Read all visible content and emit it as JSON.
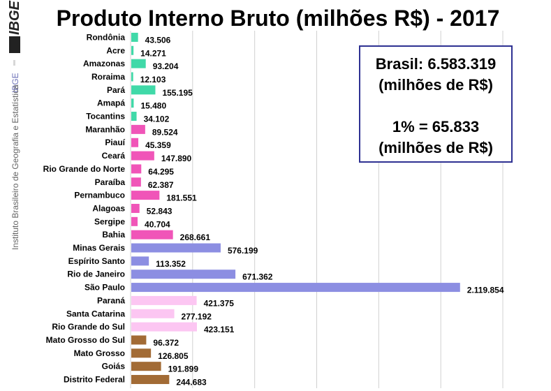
{
  "sidebar": {
    "logo_text": "IBGE",
    "brand_vertical": "IBGE",
    "institute_name": "Instituto Brasileiro de Geografia e Estatística"
  },
  "info_box": {
    "line1": "Brasil: 6.583.319",
    "line2": "(milhões de R$)",
    "line3": "1% = 65.833",
    "line4": "(milhões de R$)"
  },
  "colors": {
    "norte": "#40d9a8",
    "nordeste": "#f055b8",
    "sudeste": "#8c8ee2",
    "sul": "#fcc6f2",
    "centro_oeste": "#a26b35",
    "gridline": "#d0d0d0",
    "box_border": "#2e3192"
  },
  "chart_data": {
    "type": "bar",
    "orientation": "horizontal",
    "title": "Produto Interno Bruto (milhões R$) - 2017",
    "xlabel": "",
    "ylabel": "",
    "xlim": [
      0,
      2400000
    ],
    "grid": true,
    "categories": [
      "Rondônia",
      "Acre",
      "Amazonas",
      "Roraima",
      "Pará",
      "Amapá",
      "Tocantins",
      "Maranhão",
      "Piauí",
      "Ceará",
      "Rio Grande do Norte",
      "Paraíba",
      "Pernambuco",
      "Alagoas",
      "Sergipe",
      "Bahia",
      "Minas Gerais",
      "Espírito Santo",
      "Rio de Janeiro",
      "São Paulo",
      "Paraná",
      "Santa Catarina",
      "Rio Grande do Sul",
      "Mato Grosso do Sul",
      "Mato Grosso",
      "Goiás",
      "Distrito Federal"
    ],
    "values": [
      43506,
      14271,
      93204,
      12103,
      155195,
      15480,
      34102,
      89524,
      45359,
      147890,
      64295,
      62387,
      181551,
      52843,
      40704,
      268661,
      576199,
      113352,
      671362,
      2119854,
      421375,
      277192,
      423151,
      96372,
      126805,
      191899,
      244683
    ],
    "value_labels": [
      "43.506",
      "14.271",
      "93.204",
      "12.103",
      "155.195",
      "15.480",
      "34.102",
      "89.524",
      "45.359",
      "147.890",
      "64.295",
      "62.387",
      "181.551",
      "52.843",
      "40.704",
      "268.661",
      "576.199",
      "113.352",
      "671.362",
      "2.119.854",
      "421.375",
      "277.192",
      "423.151",
      "96.372",
      "126.805",
      "191.899",
      "244.683"
    ],
    "bar_colors": [
      "norte",
      "norte",
      "norte",
      "norte",
      "norte",
      "norte",
      "norte",
      "nordeste",
      "nordeste",
      "nordeste",
      "nordeste",
      "nordeste",
      "nordeste",
      "nordeste",
      "nordeste",
      "nordeste",
      "sudeste",
      "sudeste",
      "sudeste",
      "sudeste",
      "sul",
      "sul",
      "sul",
      "centro_oeste",
      "centro_oeste",
      "centro_oeste",
      "centro_oeste"
    ]
  }
}
